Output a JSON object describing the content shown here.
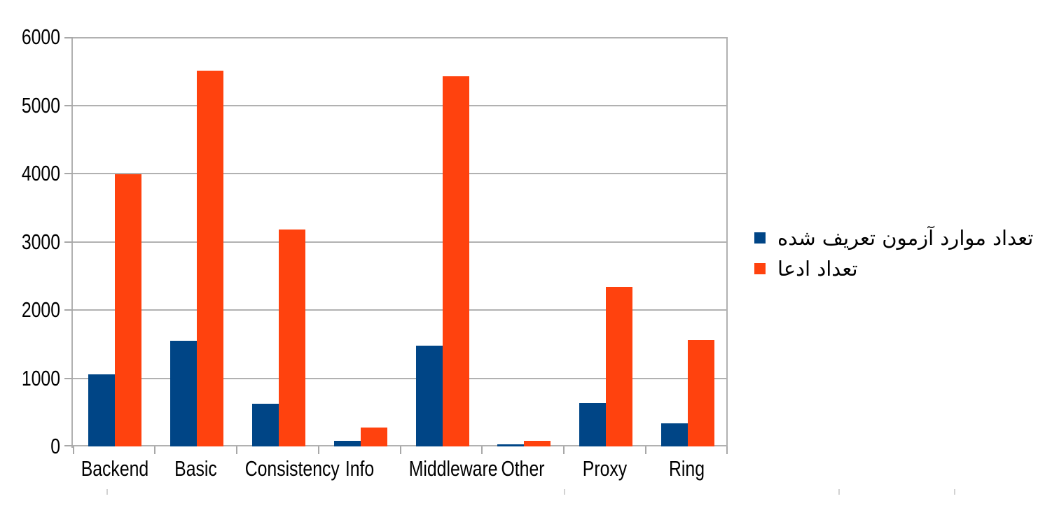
{
  "chart_data": {
    "type": "bar",
    "title": "",
    "xlabel": "",
    "ylabel": "",
    "categories": [
      "Backend",
      "Basic",
      "Consistency",
      "Info",
      "Middleware",
      "Other",
      "Proxy",
      "Ring"
    ],
    "series": [
      {
        "name": "تعداد موارد آزمون تعریف شده",
        "color": "#004586",
        "values": [
          1060,
          1550,
          630,
          80,
          1480,
          30,
          640,
          340
        ]
      },
      {
        "name": "تعداد ادعا",
        "color": "#ff420e",
        "values": [
          3990,
          5510,
          3180,
          280,
          5430,
          85,
          2340,
          1560
        ]
      }
    ],
    "ylim": [
      0,
      6000
    ],
    "ytick_interval": 1000,
    "ytick_labels": [
      "0",
      "1000",
      "2000",
      "3000",
      "4000",
      "5000",
      "6000"
    ],
    "grid": true,
    "legend_position": "right",
    "legend_text_direction": "rtl"
  },
  "colors": {
    "series_blue": "#004586",
    "series_orange": "#ff420e",
    "gridline": "#b1b1b1",
    "text": "#000000",
    "background": "#ffffff"
  }
}
